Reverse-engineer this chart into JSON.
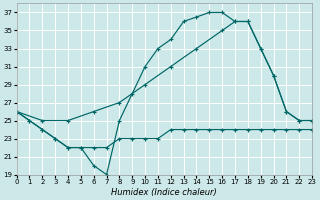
{
  "xlabel": "Humidex (Indice chaleur)",
  "bg_color": "#cce8e8",
  "grid_color": "#b8d8d8",
  "line_color": "#006666",
  "xlim": [
    0,
    23
  ],
  "ylim": [
    19,
    38
  ],
  "xticks": [
    0,
    1,
    2,
    3,
    4,
    5,
    6,
    7,
    8,
    9,
    10,
    11,
    12,
    13,
    14,
    15,
    16,
    17,
    18,
    19,
    20,
    21,
    22,
    23
  ],
  "yticks": [
    19,
    21,
    23,
    25,
    27,
    29,
    31,
    33,
    35,
    37
  ],
  "curve1_x": [
    0,
    1,
    2,
    3,
    4,
    5,
    6,
    7,
    8,
    9,
    10,
    11,
    12,
    13,
    14,
    15,
    16,
    17,
    18,
    19,
    20,
    21,
    22,
    23
  ],
  "curve1_y": [
    26,
    25,
    24,
    23,
    22,
    22,
    20,
    19,
    25,
    28,
    31,
    33,
    34,
    36,
    36.5,
    37,
    37,
    36,
    36,
    33,
    30,
    26,
    25,
    25
  ],
  "curve2_x": [
    0,
    2,
    4,
    6,
    8,
    10,
    12,
    14,
    16,
    17,
    18,
    19,
    20,
    21,
    22,
    23
  ],
  "curve2_y": [
    26,
    25,
    25,
    26,
    27,
    29,
    31,
    33,
    35,
    36,
    36,
    33,
    30,
    26,
    25,
    25
  ],
  "curve3_x": [
    0,
    1,
    2,
    3,
    4,
    5,
    6,
    7,
    8,
    9,
    10,
    11,
    12,
    13,
    14,
    15,
    16,
    17,
    18,
    19,
    20,
    21,
    22,
    23
  ],
  "curve3_y": [
    26,
    25,
    24,
    23,
    22,
    22,
    22,
    22,
    23,
    23,
    23,
    23,
    24,
    24,
    24,
    24,
    24,
    24,
    24,
    24,
    24,
    24,
    24,
    24
  ]
}
